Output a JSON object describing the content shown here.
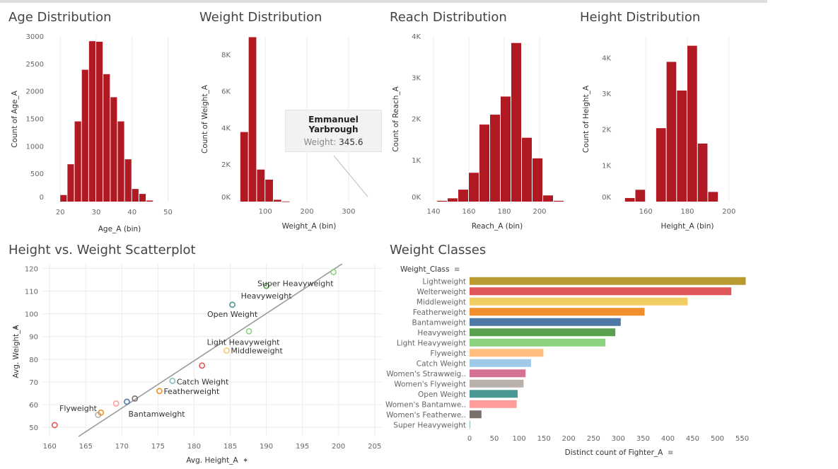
{
  "colors": {
    "bar": "#b11a22",
    "grid": "#ececec",
    "trend": "#999999"
  },
  "titles": {
    "age": "Age Distribution",
    "weight": "Weight Distribution",
    "reach": "Reach Distribution",
    "height": "Height Distribution",
    "scatter": "Height vs. Weight Scatterplot",
    "classes": "Weight Classes"
  },
  "tooltip": {
    "name": "Emmanuel Yarbrough",
    "label": "Weight:",
    "value": "345.6"
  },
  "chart_data": [
    {
      "id": "age",
      "type": "bar",
      "title": "Age Distribution",
      "xlabel": "Age_A (bin)",
      "ylabel": "Count of Age_A",
      "xlim": [
        17,
        56
      ],
      "ylim": [
        0,
        3000
      ],
      "xticks": [
        {
          "v": 20,
          "t": "20"
        },
        {
          "v": 30,
          "t": "30"
        },
        {
          "v": 40,
          "t": "40"
        },
        {
          "v": 50,
          "t": "50"
        }
      ],
      "yticks": [
        {
          "v": 0,
          "t": "0"
        },
        {
          "v": 500,
          "t": "500"
        },
        {
          "v": 1000,
          "t": "1000"
        },
        {
          "v": 1500,
          "t": "1500"
        },
        {
          "v": 2000,
          "t": "2000"
        },
        {
          "v": 2500,
          "t": "2500"
        },
        {
          "v": 3000,
          "t": "3000"
        }
      ],
      "bin_width": 2,
      "bins": [
        20,
        22,
        24,
        26,
        28,
        30,
        32,
        34,
        36,
        38,
        40,
        42,
        44
      ],
      "values": [
        120,
        680,
        1460,
        2400,
        2920,
        2910,
        2320,
        1900,
        1460,
        770,
        230,
        140,
        20
      ]
    },
    {
      "id": "weight",
      "type": "bar",
      "title": "Weight Distribution",
      "xlabel": "Weight_A (bin)",
      "ylabel": "Count of Weight_A",
      "xlim": [
        30,
        380
      ],
      "ylim": [
        0,
        9000
      ],
      "xticks": [
        {
          "v": 100,
          "t": "100"
        },
        {
          "v": 200,
          "t": "200"
        },
        {
          "v": 300,
          "t": "300"
        }
      ],
      "yticks": [
        {
          "v": 0,
          "t": "0K"
        },
        {
          "v": 2000,
          "t": "2K"
        },
        {
          "v": 4000,
          "t": "4K"
        },
        {
          "v": 6000,
          "t": "6K"
        },
        {
          "v": 8000,
          "t": "8K"
        }
      ],
      "bin_width": 20,
      "bins": [
        40,
        60,
        80,
        100,
        120,
        140
      ],
      "values": [
        3800,
        8980,
        1750,
        1200,
        100,
        10
      ]
    },
    {
      "id": "reach",
      "type": "bar",
      "title": "Reach Distribution",
      "xlabel": "Reach_A (bin)",
      "ylabel": "Count of Reach_A",
      "xlim": [
        136,
        216
      ],
      "ylim": [
        0,
        4000
      ],
      "xticks": [
        {
          "v": 140,
          "t": "140"
        },
        {
          "v": 160,
          "t": "160"
        },
        {
          "v": 180,
          "t": "180"
        },
        {
          "v": 200,
          "t": "200"
        }
      ],
      "yticks": [
        {
          "v": 0,
          "t": "0K"
        },
        {
          "v": 1000,
          "t": "1K"
        },
        {
          "v": 2000,
          "t": "2K"
        },
        {
          "v": 3000,
          "t": "3K"
        },
        {
          "v": 4000,
          "t": "4K"
        }
      ],
      "bin_width": 6,
      "bins": [
        142,
        148,
        154,
        160,
        166,
        172,
        178,
        184,
        190,
        196,
        202,
        208
      ],
      "values": [
        20,
        80,
        290,
        700,
        1870,
        2110,
        2550,
        3850,
        1550,
        1050,
        150,
        20
      ]
    },
    {
      "id": "height",
      "type": "bar",
      "title": "Height Distribution",
      "xlabel": "Height_A (bin)",
      "ylabel": "Count of Height_A",
      "xlim": [
        146,
        214
      ],
      "ylim": [
        0,
        4600
      ],
      "xticks": [
        {
          "v": 160,
          "t": "160"
        },
        {
          "v": 180,
          "t": "180"
        },
        {
          "v": 200,
          "t": "200"
        }
      ],
      "yticks": [
        {
          "v": 0,
          "t": "0K"
        },
        {
          "v": 1000,
          "t": "1K"
        },
        {
          "v": 2000,
          "t": "2K"
        },
        {
          "v": 3000,
          "t": "3K"
        },
        {
          "v": 4000,
          "t": "4K"
        }
      ],
      "bin_width": 5,
      "bins": [
        150,
        155,
        160,
        165,
        170,
        175,
        180,
        185,
        190,
        195,
        200,
        205
      ],
      "values": [
        100,
        330,
        0,
        2050,
        3900,
        3100,
        4350,
        1620,
        270,
        0,
        0,
        0
      ]
    },
    {
      "id": "scatter",
      "type": "scatter",
      "title": "Height vs. Weight Scatterplot",
      "xlabel": "Avg. Height_A",
      "ylabel": "Avg. Weight_A",
      "xlim": [
        159,
        206
      ],
      "ylim": [
        46,
        122
      ],
      "xticks": [
        160,
        165,
        170,
        175,
        180,
        185,
        190,
        195,
        200,
        205
      ],
      "yticks": [
        50,
        60,
        70,
        80,
        90,
        100,
        110,
        120
      ],
      "trend": {
        "x0": 164,
        "y0": 46,
        "x1": 200.5,
        "y1": 122
      },
      "points": [
        {
          "x": 160.7,
          "y": 51.0,
          "color": "#e15759",
          "label": ""
        },
        {
          "x": 166.7,
          "y": 55.5,
          "color": "#bab0ac",
          "label": ""
        },
        {
          "x": 167.1,
          "y": 56.5,
          "color": "#f28e2b",
          "label": ""
        },
        {
          "x": 169.2,
          "y": 60.5,
          "color": "#ff9d9a",
          "label": ""
        },
        {
          "x": 170.7,
          "y": 61.3,
          "color": "#4e79a7",
          "label": "Bantamweight"
        },
        {
          "x": 171.8,
          "y": 62.7,
          "color": "#79706e",
          "label": ""
        },
        {
          "x": 175.2,
          "y": 66.0,
          "color": "#f28e2b",
          "label": "Featherweight"
        },
        {
          "x": 177.0,
          "y": 70.5,
          "color": "#86bcb6",
          "label": "Catch Weight"
        },
        {
          "x": 181.1,
          "y": 77.2,
          "color": "#e15759",
          "label": ""
        },
        {
          "x": 184.5,
          "y": 83.8,
          "color": "#f1ce63",
          "label": "Middleweight"
        },
        {
          "x": 187.6,
          "y": 92.3,
          "color": "#8cd17d",
          "label": "Light Heavyweight"
        },
        {
          "x": 185.3,
          "y": 104.0,
          "color": "#499894",
          "label": "Open Weight"
        },
        {
          "x": 190.0,
          "y": 112.3,
          "color": "#59a14f",
          "label": "Heavyweight"
        },
        {
          "x": 199.3,
          "y": 118.4,
          "color": "#8cd17d",
          "label": "Super Heavyweight"
        }
      ],
      "extra_labels": [
        "Flyweight"
      ]
    },
    {
      "id": "classes",
      "type": "bar",
      "title": "Weight Classes",
      "header": "Weight_Class",
      "xlabel": "Distinct count of Fighter_A",
      "xlim": [
        0,
        582
      ],
      "xticks": [
        0,
        50,
        100,
        150,
        200,
        250,
        300,
        350,
        400,
        450,
        500,
        550
      ],
      "categories": [
        "Lightweight",
        "Welterweight",
        "Middleweight",
        "Featherweight",
        "Bantamweight",
        "Heavyweight",
        "Light Heavyweight",
        "Flyweight",
        "Catch Weight",
        "Women's Strawweig..",
        "Women's Flyweight",
        "Open Weight",
        "Women's Bantamwe..",
        "Women's Featherwe..",
        "Super Heavyweight"
      ],
      "values": [
        557,
        528,
        440,
        353,
        305,
        294,
        274,
        149,
        124,
        113,
        109,
        97,
        95,
        24,
        1
      ],
      "bar_colors": [
        "#b89a30",
        "#e15759",
        "#f1ce63",
        "#f28e2b",
        "#4e79a7",
        "#59a14f",
        "#8cd17d",
        "#ffbe7d",
        "#a0cbe8",
        "#d37295",
        "#bab0ac",
        "#499894",
        "#ff9d9a",
        "#79706e",
        "#86bcb6"
      ]
    }
  ]
}
